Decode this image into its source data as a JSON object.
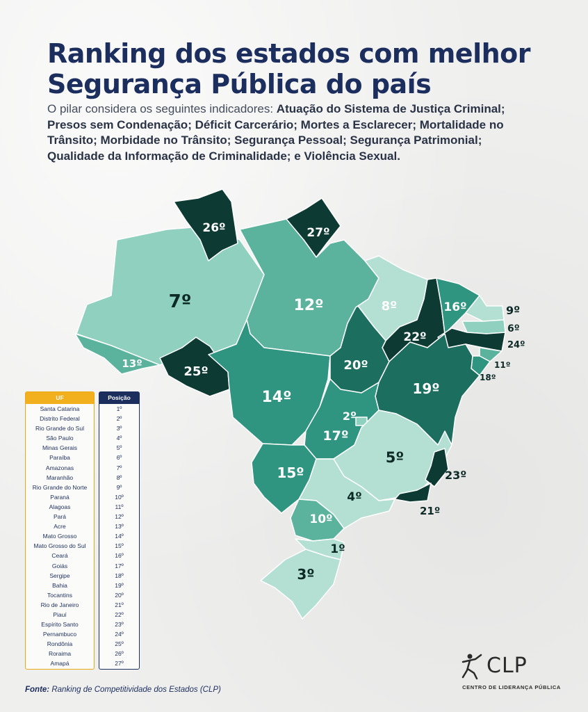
{
  "title_line1": "Ranking dos estados com melhor",
  "title_line2": "Segurança Pública do país",
  "subtitle": {
    "intro": "O pilar considera os seguintes indicadores: ",
    "indicators": "Atuação do Sistema de Justiça Criminal; Presos sem Condenação; Déficit Carcerário; Mortes a Esclarecer; Mortalidade no Trânsito; Morbidade no Trânsito; Segurança Pessoal; Segurança Patrimonial; Qualidade da Informação de Criminalidade; e Violência Sexual."
  },
  "colors": {
    "lightest": "#b4e0d3",
    "light": "#8fd0bf",
    "medium": "#5cb39d",
    "mediumDark": "#2f9580",
    "dark": "#1c6e5f",
    "darkest": "#0d3a33",
    "accent": "#f2b01e",
    "navy": "#1c2e5e"
  },
  "map_labels": {
    "rr": "26º",
    "ap": "27º",
    "am": "7º",
    "pa": "12º",
    "ma": "8º",
    "ce": "16º",
    "rn": "9º",
    "pb": "6º",
    "pe": "24º",
    "al": "11º",
    "se": "18º",
    "pi": "22º",
    "ba": "19º",
    "to": "20º",
    "df": "2º",
    "go": "17º",
    "mg": "5º",
    "es": "23º",
    "rj": "21º",
    "sp": "4º",
    "ms": "15º",
    "mt": "14º",
    "ro": "25º",
    "ac": "13º",
    "pr": "10º",
    "sc": "1º",
    "rs": "3º"
  },
  "legend": {
    "uf_header": "UF",
    "pos_header": "Posição",
    "rows": [
      {
        "uf": "Santa Catarina",
        "pos": "1º"
      },
      {
        "uf": "Distrito Federal",
        "pos": "2º"
      },
      {
        "uf": "Rio Grande do Sul",
        "pos": "3º"
      },
      {
        "uf": "São Paulo",
        "pos": "4º"
      },
      {
        "uf": "Minas Gerais",
        "pos": "5º"
      },
      {
        "uf": "Paraíba",
        "pos": "6º"
      },
      {
        "uf": "Amazonas",
        "pos": "7º"
      },
      {
        "uf": "Maranhão",
        "pos": "8º"
      },
      {
        "uf": "Rio Grande do Norte",
        "pos": "9º"
      },
      {
        "uf": "Paraná",
        "pos": "10º"
      },
      {
        "uf": "Alagoas",
        "pos": "11º"
      },
      {
        "uf": "Pará",
        "pos": "12º"
      },
      {
        "uf": "Acre",
        "pos": "13º"
      },
      {
        "uf": "Mato Grosso",
        "pos": "14º"
      },
      {
        "uf": "Mato Grosso do Sul",
        "pos": "15º"
      },
      {
        "uf": "Ceará",
        "pos": "16º"
      },
      {
        "uf": "Goiás",
        "pos": "17º"
      },
      {
        "uf": "Sergipe",
        "pos": "18º"
      },
      {
        "uf": "Bahia",
        "pos": "19º"
      },
      {
        "uf": "Tocantins",
        "pos": "20º"
      },
      {
        "uf": "Rio de Janeiro",
        "pos": "21º"
      },
      {
        "uf": "Piauí",
        "pos": "22º"
      },
      {
        "uf": "Espírito Santo",
        "pos": "23º"
      },
      {
        "uf": "Pernambuco",
        "pos": "24º"
      },
      {
        "uf": "Rondônia",
        "pos": "25º"
      },
      {
        "uf": "Roraima",
        "pos": "26º"
      },
      {
        "uf": "Amapá",
        "pos": "27º"
      }
    ]
  },
  "source": {
    "label": "Fonte:",
    "text": " Ranking de Competitividade dos Estados (CLP)"
  },
  "logo": {
    "name": "CLP",
    "subtitle": "CENTRO DE LIDERANÇA PÚBLICA"
  }
}
